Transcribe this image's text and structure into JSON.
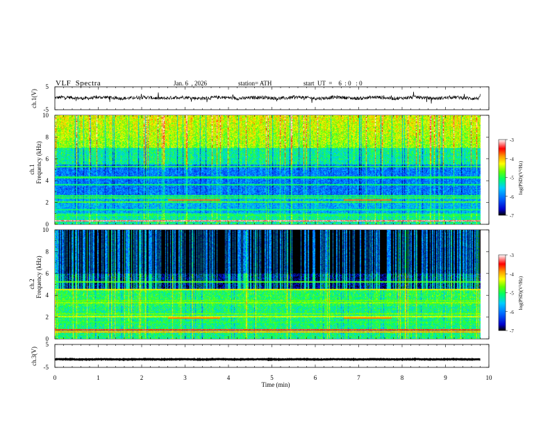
{
  "header": {
    "title": "VLF  Spectra",
    "date": "Jan. 6  , 2026",
    "station": "station= ATH",
    "start": "start  UT  =    6  : 0   : 0"
  },
  "chart_data": {
    "type": "heatmap",
    "x_axis": {
      "label": "Time  (min)",
      "range": [
        0,
        10
      ],
      "ticks": [
        "0",
        "1",
        "2",
        "3",
        "4",
        "5",
        "6",
        "7",
        "8",
        "9",
        "10"
      ],
      "data_end": 9.8
    },
    "waveform_ch1": {
      "ylabel": "ch.1(V)",
      "yrange": [
        -5,
        5
      ],
      "ticks": [
        "5",
        "-5"
      ],
      "baseline": 0.2,
      "amplitude": 1.2
    },
    "spectrogram_ch1": {
      "ylabel_channel": "ch.1",
      "ylabel": "Frequency  (kHz)",
      "yrange": [
        0,
        10
      ],
      "ticks": [
        "0",
        "2",
        "4",
        "6",
        "8",
        "10"
      ]
    },
    "spectrogram_ch2": {
      "ylabel_channel": "ch.2",
      "ylabel": "Frequency  (kHz)",
      "yrange": [
        0,
        10
      ],
      "ticks": [
        "0",
        "2",
        "4",
        "6",
        "8",
        "10"
      ]
    },
    "waveform_ch3": {
      "ylabel": "ch.3(V)",
      "yrange": [
        -5,
        5
      ],
      "ticks": [
        "5",
        "-5"
      ],
      "baseline": -1.5,
      "amplitude": 0.2
    },
    "colorbar": {
      "label": "log(PSD)(V²/Hz)",
      "range": [
        -7,
        -3
      ],
      "ticks": [
        "-3",
        "-4",
        "-5",
        "-6",
        "-7"
      ],
      "colors": [
        "#000000",
        "#0000cc",
        "#0066ff",
        "#00ccff",
        "#00ff66",
        "#66ff00",
        "#ffff00",
        "#ff9900",
        "#ff0000",
        "#ffffff"
      ]
    },
    "bands_ch1": [
      {
        "freq": 0.3,
        "level": -3.2
      },
      {
        "freq": 0.5,
        "level": -5.6
      },
      {
        "freq": 0.8,
        "level": -5.0
      },
      {
        "freq": 1.3,
        "level": -5.1
      },
      {
        "freq": 2.0,
        "level": -4.8
      },
      {
        "freq": 2.4,
        "level": -4.9
      },
      {
        "freq": 2.6,
        "level": -5.0
      },
      {
        "freq": 3.6,
        "level": -5.1
      },
      {
        "freq": 4.3,
        "level": -5.0
      },
      {
        "freq": 5.3,
        "level": -5.0
      }
    ],
    "bands_ch2": [
      {
        "freq": 0.6,
        "level": -4.0
      },
      {
        "freq": 0.8,
        "level": -3.5
      },
      {
        "freq": 1.5,
        "level": -5.0
      },
      {
        "freq": 2.0,
        "level": -4.4
      },
      {
        "freq": 2.3,
        "level": -4.7
      },
      {
        "freq": 3.3,
        "level": -4.6
      },
      {
        "freq": 3.5,
        "level": -4.8
      },
      {
        "freq": 4.5,
        "level": -4.3
      },
      {
        "freq": 5.2,
        "level": -4.8
      }
    ],
    "annotations": [
      {
        "channel": "ch.1",
        "freq": 2.2,
        "t_start": 2.6,
        "t_end": 3.8,
        "level": -3.8
      },
      {
        "channel": "ch.1",
        "freq": 2.2,
        "t_start": 6.65,
        "t_end": 7.75,
        "level": -3.8
      },
      {
        "channel": "ch.2",
        "freq": 1.9,
        "t_start": 2.6,
        "t_end": 3.8,
        "level": -3.8
      },
      {
        "channel": "ch.2",
        "freq": 1.9,
        "t_start": 6.65,
        "t_end": 7.75,
        "level": -3.8
      }
    ]
  }
}
